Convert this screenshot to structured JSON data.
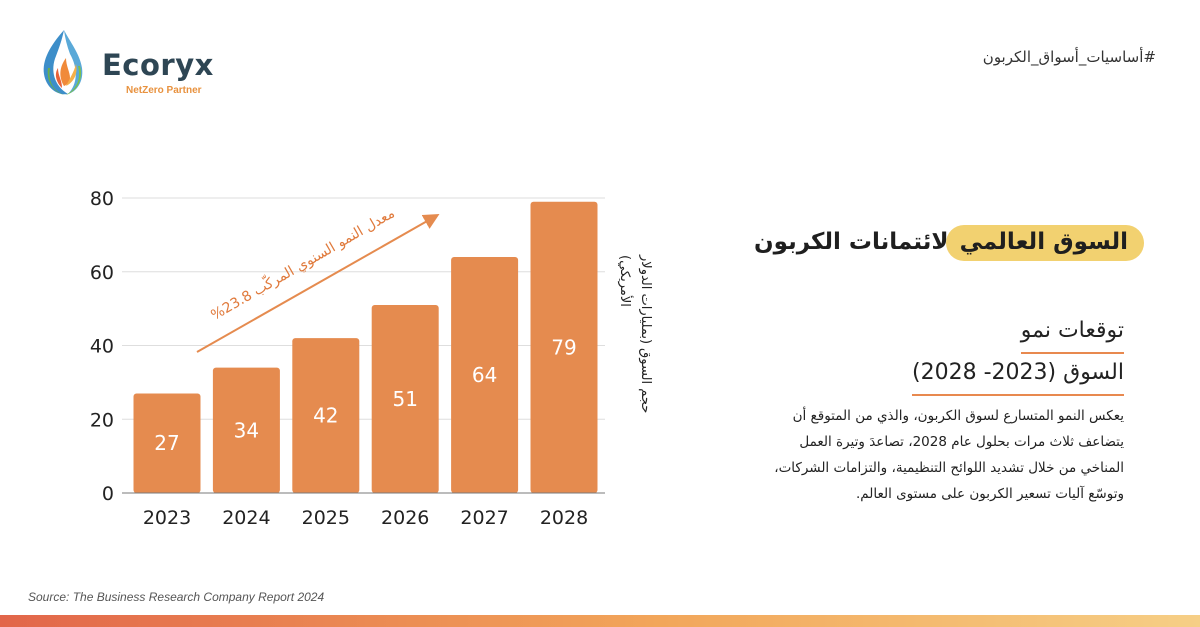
{
  "brand": {
    "name": "Ecoryx",
    "tagline": "NetZero Partner"
  },
  "hashtag": "#أساسيات_أسواق_الكربون",
  "title": {
    "highlight": "السوق العالمي",
    "rest": "لائتمانات الكربون"
  },
  "subtitle": {
    "line1": "توقعات نمو",
    "line2": "السوق (2023- 2028)"
  },
  "body": "يعكس النمو المتسارع لسوق الكربون، والذي من المتوقع أن يتضاعف ثلاث مرات بحلول عام 2028، تصاعدَ وتيرة العمل المناخي من خلال تشديد اللوائح التنظيمية، والتزامات الشركات، وتوسّع آليات تسعير الكربون على مستوى العالم.",
  "source": "Source: The Business Research Company Report 2024",
  "colors": {
    "bar": "#e58b4f",
    "arrow": "#e58b4f",
    "highlight": "#f2d170",
    "logo_text": "#2e4654"
  },
  "chart_data": {
    "type": "bar",
    "categories": [
      "2023",
      "2024",
      "2025",
      "2026",
      "2027",
      "2028"
    ],
    "values": [
      27,
      34,
      42,
      51,
      64,
      79
    ],
    "ylabel": "حجم السوق (بمليارات الدولار الأمريكي)",
    "ylim": [
      0,
      80
    ],
    "yticks": [
      0,
      20,
      40,
      60,
      80
    ],
    "grid": true,
    "annotation": "معدل النمو السنوي المركّب 23.8%"
  }
}
